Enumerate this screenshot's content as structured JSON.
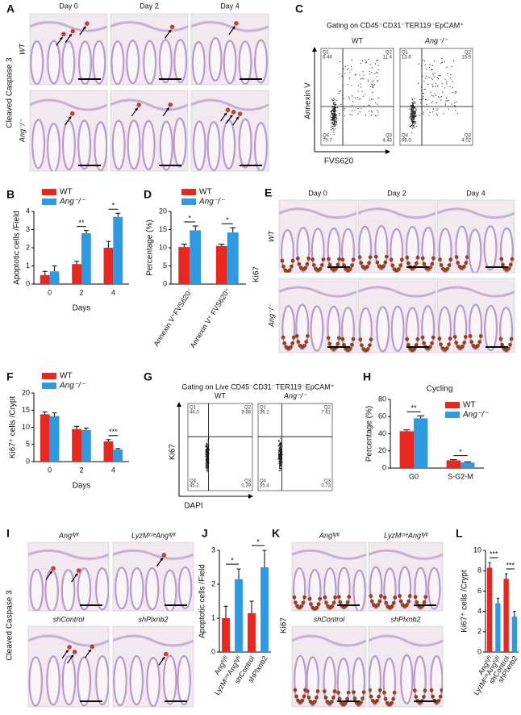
{
  "histology": [
    {
      "panel": "A",
      "stain": "Cleaved Caspase 3",
      "columns": [
        "Day 0",
        "Day 2",
        "Day 4"
      ],
      "rows": [
        "WT",
        "Ang⁻/⁻"
      ]
    },
    {
      "panel": "E",
      "stain": "Ki67",
      "columns": [
        "Day 0",
        "Day 2",
        "Day 4"
      ],
      "rows": [
        "WT",
        "Ang⁻/⁻"
      ]
    },
    {
      "panel": "I",
      "stain": "Cleaved Caspase 3",
      "titles": [
        "Angᶠˡ/ᶠˡ",
        "LyzMᶜʳᵉAngᶠˡ/ᶠˡ",
        "shControl",
        "shPlxnb2"
      ]
    },
    {
      "panel": "K",
      "stain": "Ki67",
      "titles": [
        "Angᶠˡ/ᶠˡ",
        "LyzMᶜʳᵉAngᶠˡ/ᶠˡ",
        "shControl",
        "shPlxnb2"
      ]
    }
  ],
  "flow": [
    {
      "panel": "C",
      "title": "Gating on CD45⁻CD31⁻TER119⁻EpCAM⁺",
      "ylabel": "Annexin V",
      "xlabel": "FVS620",
      "samples": [
        {
          "name": "WT",
          "quadrants": [
            {
              "label": "Q1",
              "value": "8.46"
            },
            {
              "label": "Q2",
              "value": "11.4"
            },
            {
              "label": "Q3",
              "value": "4.43"
            },
            {
              "label": "Q4",
              "value": "75.7"
            }
          ]
        },
        {
          "name": "Ang⁻/⁻",
          "quadrants": [
            {
              "label": "Q1",
              "value": "13.6"
            },
            {
              "label": "Q2",
              "value": "15.9"
            },
            {
              "label": "Q3",
              "value": "4.02"
            },
            {
              "label": "Q4",
              "value": "66.5"
            }
          ]
        }
      ]
    },
    {
      "panel": "G",
      "title": "Gating on Live CD45⁻CD31⁻TER119⁻EpCAM⁺",
      "ylabel": "Ki67",
      "xlabel": "DAPI",
      "samples": [
        {
          "name": "WT",
          "quadrants": [
            {
              "label": "Q1",
              "value": "44.0"
            },
            {
              "label": "Q2",
              "value": "9.88"
            },
            {
              "label": "Q3",
              "value": "0.79"
            },
            {
              "label": "Q4",
              "value": "45.3"
            }
          ]
        },
        {
          "name": "Ang⁻/⁻",
          "quadrants": [
            {
              "label": "Q1",
              "value": "36.2"
            },
            {
              "label": "Q2",
              "value": "7.61"
            },
            {
              "label": "Q3",
              "value": "0.73"
            },
            {
              "label": "Q4",
              "value": "55.4"
            }
          ]
        }
      ]
    }
  ],
  "chart_data": [
    {
      "type": "bar",
      "panel": "B",
      "ylabel": "Apoptotic cells /Field",
      "xlabel": "Days",
      "categories": [
        "0",
        "2",
        "4"
      ],
      "series": [
        {
          "name": "WT",
          "color": "#e8271f",
          "values": [
            0.5,
            1.1,
            2.0
          ],
          "errors": [
            0.2,
            0.15,
            0.35
          ]
        },
        {
          "name": "Ang⁻/⁻",
          "color": "#2f9ae0",
          "values": [
            0.7,
            2.8,
            3.7
          ],
          "errors": [
            0.3,
            0.15,
            0.2
          ]
        }
      ],
      "ylim": [
        0,
        4
      ],
      "yticks": [
        0,
        1,
        2,
        3,
        4
      ],
      "legend": "top-left",
      "annotations": [
        {
          "text": "**",
          "category": "2"
        },
        {
          "text": "*",
          "category": "4"
        }
      ]
    },
    {
      "type": "bar",
      "panel": "D",
      "ylabel": "Percentage (%)",
      "categories": [
        "Annexin V⁺FVS620⁻",
        "Annexin V⁺ FVS620⁺"
      ],
      "series": [
        {
          "name": "WT",
          "color": "#e8271f",
          "values": [
            10.2,
            10.5
          ],
          "errors": [
            0.8,
            0.5
          ]
        },
        {
          "name": "Ang⁻/⁻",
          "color": "#2f9ae0",
          "values": [
            14.8,
            14.2
          ],
          "errors": [
            1.2,
            1.3
          ]
        }
      ],
      "ylim": [
        0,
        20
      ],
      "yticks": [
        0,
        5,
        10,
        15,
        20
      ],
      "legend": "top-left",
      "annotations": [
        {
          "text": "*",
          "category": "Annexin V⁺FVS620⁻"
        },
        {
          "text": "*",
          "category": "Annexin V⁺ FVS620⁺"
        }
      ]
    },
    {
      "type": "bar",
      "panel": "F",
      "ylabel": "Ki67⁺ cells /Crypt",
      "xlabel": "Days",
      "categories": [
        "0",
        "2",
        "4"
      ],
      "series": [
        {
          "name": "WT",
          "color": "#e8271f",
          "values": [
            13.8,
            9.5,
            5.9
          ],
          "errors": [
            0.7,
            0.8,
            0.5
          ]
        },
        {
          "name": "Ang⁻/⁻",
          "color": "#2f9ae0",
          "values": [
            13.3,
            9.2,
            3.5
          ],
          "errors": [
            0.9,
            0.6,
            0.3
          ]
        }
      ],
      "ylim": [
        0,
        20
      ],
      "yticks": [
        0,
        5,
        10,
        15,
        20
      ],
      "legend": "top-left",
      "annotations": [
        {
          "text": "***",
          "category": "4"
        }
      ]
    },
    {
      "type": "bar",
      "panel": "H",
      "title": "Cycling",
      "ylabel": "Percentage (%)",
      "categories": [
        "G0",
        "S-G2-M"
      ],
      "series": [
        {
          "name": "WT",
          "color": "#e8271f",
          "values": [
            43,
            9
          ],
          "errors": [
            1.5,
            0.8
          ]
        },
        {
          "name": "Ang⁻/⁻",
          "color": "#2f9ae0",
          "values": [
            58,
            6.5
          ],
          "errors": [
            3,
            0.8
          ]
        }
      ],
      "ylim": [
        0,
        80
      ],
      "yticks": [
        0,
        20,
        40,
        60,
        80
      ],
      "legend": "top-right",
      "annotations": [
        {
          "text": "**",
          "category": "G0"
        },
        {
          "text": "*",
          "category": "S-G2-M"
        }
      ]
    },
    {
      "type": "bar",
      "panel": "J",
      "ylabel": "Apoptotic cells /Field",
      "categories": [
        "Angᶠˡ/ᶠˡ",
        "LyzMᶜʳᵉAngᶠˡ/ᶠˡ",
        "shControl",
        "shPlxnb2"
      ],
      "values": [
        1.0,
        2.15,
        1.15,
        2.5
      ],
      "errors": [
        0.35,
        0.3,
        0.35,
        0.5
      ],
      "colors": [
        "#e8271f",
        "#2f9ae0",
        "#e8271f",
        "#2f9ae0"
      ],
      "ylim": [
        0,
        3
      ],
      "yticks": [
        0,
        1,
        2,
        3
      ],
      "annotations": [
        {
          "text": "*",
          "categories": [
            "Angᶠˡ/ᶠˡ",
            "LyzMᶜʳᵉAngᶠˡ/ᶠˡ"
          ]
        },
        {
          "text": "*",
          "categories": [
            "shControl",
            "shPlxnb2"
          ]
        }
      ]
    },
    {
      "type": "bar",
      "panel": "L",
      "ylabel": "Ki67⁺ cells /Crypt",
      "categories": [
        "Angᶠˡ/ᶠˡ",
        "LyzMᶜʳᵉAngᶠˡ/ᶠˡ",
        "shControl",
        "shPlxnb2"
      ],
      "values": [
        8.3,
        4.8,
        7.2,
        3.5
      ],
      "errors": [
        0.5,
        0.5,
        0.5,
        0.5
      ],
      "colors": [
        "#e8271f",
        "#2f9ae0",
        "#e8271f",
        "#2f9ae0"
      ],
      "ylim": [
        0,
        10
      ],
      "yticks": [
        0,
        2,
        4,
        6,
        8,
        10
      ],
      "annotations": [
        {
          "text": "***",
          "categories": [
            "Angᶠˡ/ᶠˡ",
            "LyzMᶜʳᵉAngᶠˡ/ᶠˡ"
          ]
        },
        {
          "text": "***",
          "categories": [
            "shControl",
            "shPlxnb2"
          ]
        }
      ]
    }
  ]
}
